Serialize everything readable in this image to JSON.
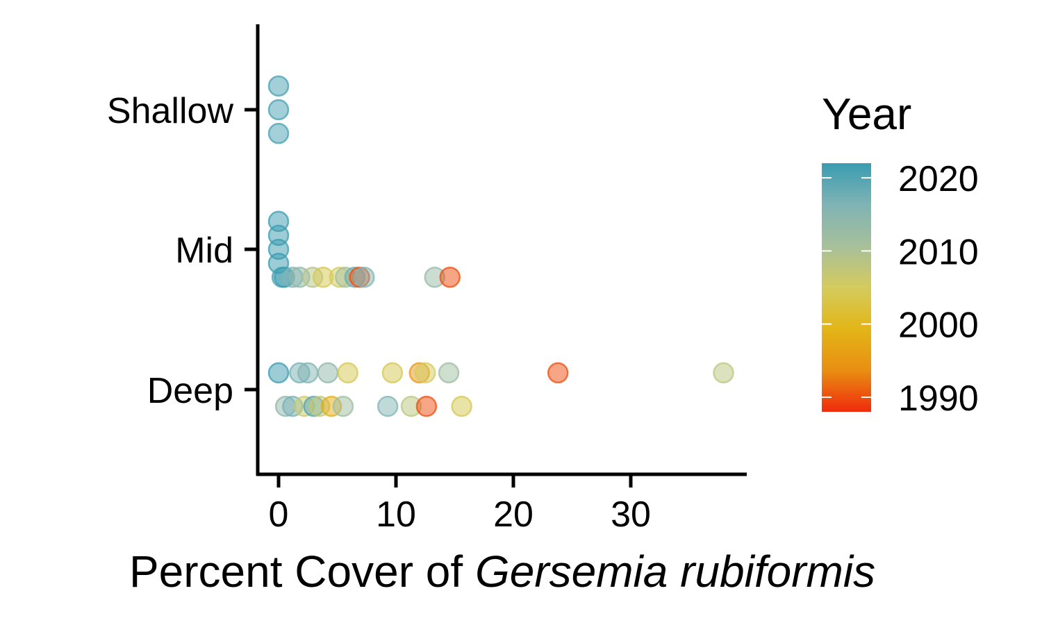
{
  "chart_data": {
    "type": "scatter",
    "xlabel_plain": "Percent Cover of ",
    "xlabel_italic": "Gersemia rubiformis",
    "ylabel": "",
    "xlim": [
      -1.8,
      40
    ],
    "x_ticks": [
      "0",
      "10",
      "20",
      "30"
    ],
    "y_categories": [
      "Deep",
      "Mid",
      "Shallow"
    ],
    "grid": false,
    "legend": {
      "title": "Year",
      "position": "right",
      "type": "colorbar",
      "range": [
        1988,
        2022
      ],
      "ticks": [
        "2020",
        "2010",
        "2000",
        "1990"
      ],
      "colors": [
        "#ef2b0c",
        "#e98e12",
        "#e2b617",
        "#d4cb5e",
        "#a7c09a",
        "#7fb3b5",
        "#3a9cb0"
      ]
    },
    "points": [
      {
        "category": "Shallow",
        "jitter": 0.17,
        "x": 0,
        "year": 2021
      },
      {
        "category": "Shallow",
        "jitter": 0.0,
        "x": 0,
        "year": 2021
      },
      {
        "category": "Shallow",
        "jitter": -0.17,
        "x": 0,
        "year": 2021
      },
      {
        "category": "Mid",
        "jitter": 0.2,
        "x": 0,
        "year": 2022
      },
      {
        "category": "Mid",
        "jitter": 0.1,
        "x": 0,
        "year": 2022
      },
      {
        "category": "Mid",
        "jitter": 0.0,
        "x": 0,
        "year": 2022
      },
      {
        "category": "Mid",
        "jitter": -0.1,
        "x": 0,
        "year": 2022
      },
      {
        "category": "Mid",
        "jitter": -0.2,
        "x": 0.3,
        "year": 2021
      },
      {
        "category": "Mid",
        "jitter": -0.2,
        "x": 0.5,
        "year": 2022
      },
      {
        "category": "Mid",
        "jitter": -0.2,
        "x": 1.2,
        "year": 2016
      },
      {
        "category": "Mid",
        "jitter": -0.2,
        "x": 1.8,
        "year": 2014
      },
      {
        "category": "Mid",
        "jitter": -0.2,
        "x": 2.9,
        "year": 2009
      },
      {
        "category": "Mid",
        "jitter": -0.2,
        "x": 3.8,
        "year": 2004
      },
      {
        "category": "Mid",
        "jitter": -0.2,
        "x": 5.2,
        "year": 2005
      },
      {
        "category": "Mid",
        "jitter": -0.2,
        "x": 5.7,
        "year": 2011
      },
      {
        "category": "Mid",
        "jitter": -0.2,
        "x": 6.5,
        "year": 2018
      },
      {
        "category": "Mid",
        "jitter": -0.2,
        "x": 6.9,
        "year": 1990
      },
      {
        "category": "Mid",
        "jitter": -0.2,
        "x": 7.3,
        "year": 2016
      },
      {
        "category": "Mid",
        "jitter": -0.2,
        "x": 13.3,
        "year": 2013
      },
      {
        "category": "Mid",
        "jitter": -0.2,
        "x": 14.6,
        "year": 1990
      },
      {
        "category": "Deep",
        "jitter": 0.12,
        "x": 0,
        "year": 2022
      },
      {
        "category": "Deep",
        "jitter": 0.12,
        "x": 1.8,
        "year": 2017
      },
      {
        "category": "Deep",
        "jitter": 0.12,
        "x": 2.5,
        "year": 2016
      },
      {
        "category": "Deep",
        "jitter": 0.12,
        "x": 4.2,
        "year": 2014
      },
      {
        "category": "Deep",
        "jitter": 0.12,
        "x": 5.9,
        "year": 2004
      },
      {
        "category": "Deep",
        "jitter": 0.12,
        "x": 9.7,
        "year": 2004
      },
      {
        "category": "Deep",
        "jitter": 0.12,
        "x": 12.0,
        "year": 1995
      },
      {
        "category": "Deep",
        "jitter": 0.12,
        "x": 12.5,
        "year": 2005
      },
      {
        "category": "Deep",
        "jitter": 0.12,
        "x": 14.5,
        "year": 2012
      },
      {
        "category": "Deep",
        "jitter": 0.12,
        "x": 23.8,
        "year": 1990
      },
      {
        "category": "Deep",
        "jitter": 0.12,
        "x": 37.9,
        "year": 2008
      },
      {
        "category": "Deep",
        "jitter": -0.12,
        "x": 0.6,
        "year": 2014
      },
      {
        "category": "Deep",
        "jitter": -0.12,
        "x": 1.2,
        "year": 2017
      },
      {
        "category": "Deep",
        "jitter": -0.12,
        "x": 2.2,
        "year": 2006
      },
      {
        "category": "Deep",
        "jitter": -0.12,
        "x": 3.0,
        "year": 2020
      },
      {
        "category": "Deep",
        "jitter": -0.12,
        "x": 3.5,
        "year": 2007
      },
      {
        "category": "Deep",
        "jitter": -0.12,
        "x": 4.5,
        "year": 1998
      },
      {
        "category": "Deep",
        "jitter": -0.12,
        "x": 5.5,
        "year": 2012
      },
      {
        "category": "Deep",
        "jitter": -0.12,
        "x": 9.3,
        "year": 2016
      },
      {
        "category": "Deep",
        "jitter": -0.12,
        "x": 11.3,
        "year": 2008
      },
      {
        "category": "Deep",
        "jitter": -0.12,
        "x": 12.6,
        "year": 1990
      },
      {
        "category": "Deep",
        "jitter": -0.12,
        "x": 15.6,
        "year": 2004
      }
    ]
  }
}
